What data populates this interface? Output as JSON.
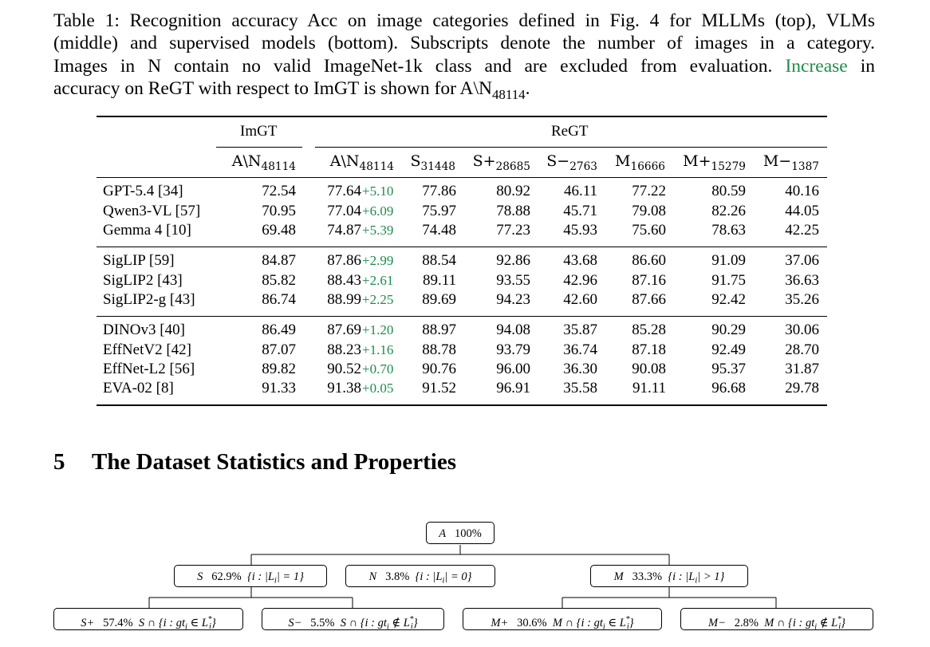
{
  "caption": {
    "line1": "Table 1: Recognition accuracy Acc on image categories defined in Fig. 4 for MLLMs (top), VLMs",
    "line2": "(middle) and supervised models (bottom). Subscripts denote the number of images in a category.",
    "line3": "Images in N contain no valid ImageNet-1k class and are excluded from evaluation.",
    "line3_green": "Increase",
    "line3_end": "in",
    "line4_pre": "accuracy on ReGT with respect to ImGT is shown for A\\N",
    "line4_sub": "48114",
    "line4_end": "."
  },
  "table": {
    "group_imgt": "ImGT",
    "group_regt": "ReGT",
    "headers": [
      {
        "main": "A\\N",
        "sub": "48114"
      },
      {
        "main": "A\\N",
        "sub": "48114"
      },
      {
        "main": "S",
        "sub": "31448"
      },
      {
        "main": "S+",
        "sub": "28685"
      },
      {
        "main": "S−",
        "sub": "2763"
      },
      {
        "main": "M",
        "sub": "16666"
      },
      {
        "main": "M+",
        "sub": "15279"
      },
      {
        "main": "M−",
        "sub": "1387"
      }
    ],
    "rows": [
      {
        "model": "GPT-5.4 [34]",
        "imgt": "72.54",
        "regt": "77.64",
        "inc": "+5.10",
        "s": "77.86",
        "sp": "80.92",
        "sm": "46.11",
        "m": "77.22",
        "mp": "80.59",
        "mm": "40.16"
      },
      {
        "model": "Qwen3-VL [57]",
        "imgt": "70.95",
        "regt": "77.04",
        "inc": "+6.09",
        "s": "75.97",
        "sp": "78.88",
        "sm": "45.71",
        "m": "79.08",
        "mp": "82.26",
        "mm": "44.05"
      },
      {
        "model": "Gemma 4 [10]",
        "imgt": "69.48",
        "regt": "74.87",
        "inc": "+5.39",
        "s": "74.48",
        "sp": "77.23",
        "sm": "45.93",
        "m": "75.60",
        "mp": "78.63",
        "mm": "42.25"
      },
      {
        "model": "SigLIP [59]",
        "imgt": "84.87",
        "regt": "87.86",
        "inc": "+2.99",
        "s": "88.54",
        "sp": "92.86",
        "sm": "43.68",
        "m": "86.60",
        "mp": "91.09",
        "mm": "37.06"
      },
      {
        "model": "SigLIP2 [43]",
        "imgt": "85.82",
        "regt": "88.43",
        "inc": "+2.61",
        "s": "89.11",
        "sp": "93.55",
        "sm": "42.96",
        "m": "87.16",
        "mp": "91.75",
        "mm": "36.63"
      },
      {
        "model": "SigLIP2-g [43]",
        "imgt": "86.74",
        "regt": "88.99",
        "inc": "+2.25",
        "s": "89.69",
        "sp": "94.23",
        "sm": "42.60",
        "m": "87.66",
        "mp": "92.42",
        "mm": "35.26"
      },
      {
        "model": "DINOv3 [40]",
        "imgt": "86.49",
        "regt": "87.69",
        "inc": "+1.20",
        "s": "88.97",
        "sp": "94.08",
        "sm": "35.87",
        "m": "85.28",
        "mp": "90.29",
        "mm": "30.06"
      },
      {
        "model": "EffNetV2 [42]",
        "imgt": "87.07",
        "regt": "88.23",
        "inc": "+1.16",
        "s": "88.78",
        "sp": "93.79",
        "sm": "36.74",
        "m": "87.18",
        "mp": "92.49",
        "mm": "28.70"
      },
      {
        "model": "EffNet-L2 [56]",
        "imgt": "89.82",
        "regt": "90.52",
        "inc": "+0.70",
        "s": "90.76",
        "sp": "96.00",
        "sm": "36.30",
        "m": "90.08",
        "mp": "95.37",
        "mm": "31.87"
      },
      {
        "model": "EVA-02 [8]",
        "imgt": "91.33",
        "regt": "91.38",
        "inc": "+0.05",
        "s": "91.52",
        "sp": "96.91",
        "sm": "35.58",
        "m": "91.11",
        "mp": "96.68",
        "mm": "29.78"
      }
    ]
  },
  "section": {
    "number": "5",
    "title": "The Dataset Statistics and Properties"
  },
  "tree": {
    "root": {
      "sym": "A",
      "pct": "100%"
    },
    "level1": [
      {
        "sym": "S",
        "pct": "62.9%",
        "set": "{i : |L",
        "set_sub": "i",
        "set_end": "| = 1}"
      },
      {
        "sym": "N",
        "pct": "3.8%",
        "set": "{i : |L",
        "set_sub": "i",
        "set_end": "| = 0}"
      },
      {
        "sym": "M",
        "pct": "33.3%",
        "set": "{i : |L",
        "set_sub": "i",
        "set_end": "| > 1}"
      }
    ],
    "level2": [
      {
        "sym": "S+",
        "pct": "57.4%",
        "set": "S ∩ {i : gt",
        "set_sub": "i",
        "op": "∈",
        "set_end": "L",
        "star": "*",
        "set_sub2": "i",
        "close": "}"
      },
      {
        "sym": "S−",
        "pct": "5.5%",
        "set": "S ∩ {i : gt",
        "set_sub": "i",
        "op": "∉",
        "set_end": "L",
        "star": "*",
        "set_sub2": "i",
        "close": "}"
      },
      {
        "sym": "M+",
        "pct": "30.6%",
        "set": "M ∩ {i : gt",
        "set_sub": "i",
        "op": "∈",
        "set_end": "L",
        "star": "*",
        "set_sub2": "i",
        "close": "}"
      },
      {
        "sym": "M−",
        "pct": "2.8%",
        "set": "M ∩ {i : gt",
        "set_sub": "i",
        "op": "∉",
        "set_end": "L",
        "star": "*",
        "set_sub2": "i",
        "close": "}"
      }
    ]
  }
}
